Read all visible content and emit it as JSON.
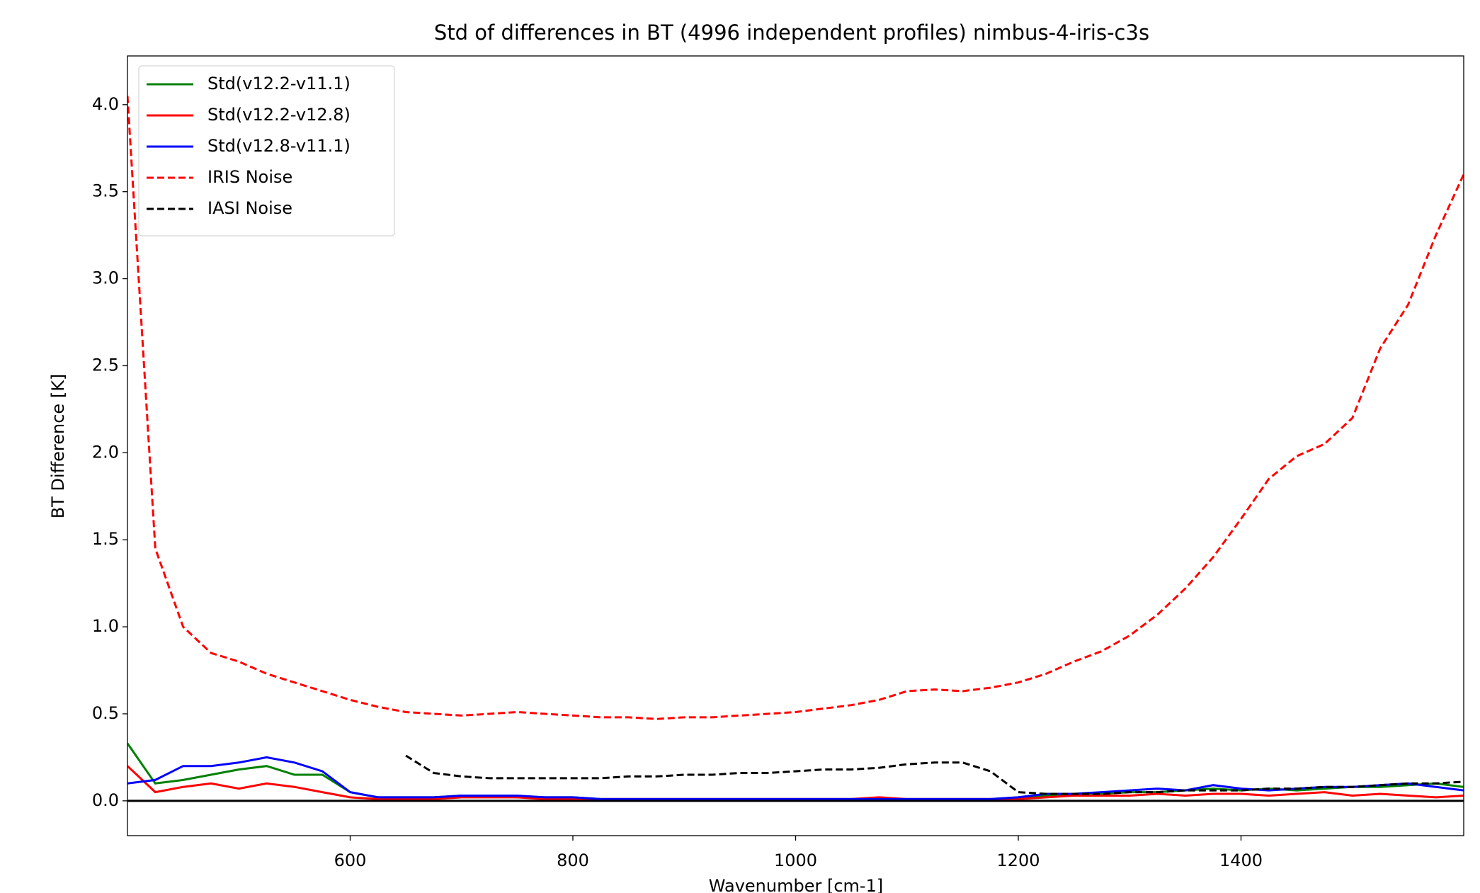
{
  "chart_data": {
    "type": "line",
    "title": "Std of differences in BT (4996 independent profiles) nimbus-4-iris-c3s",
    "xlabel": "Wavenumber [cm-1]",
    "ylabel": "BT Difference [K]",
    "x": [
      400,
      425,
      450,
      475,
      500,
      525,
      550,
      575,
      600,
      625,
      650,
      675,
      700,
      725,
      750,
      775,
      800,
      825,
      850,
      875,
      900,
      925,
      950,
      975,
      1000,
      1025,
      1050,
      1075,
      1100,
      1125,
      1150,
      1175,
      1200,
      1225,
      1250,
      1275,
      1300,
      1325,
      1350,
      1375,
      1400,
      1425,
      1450,
      1475,
      1500,
      1525,
      1550,
      1575,
      1600
    ],
    "series": [
      {
        "name": "Std(v12.2-v11.1)",
        "color": "#008000",
        "linestyle": "solid",
        "values": [
          0.33,
          0.1,
          0.12,
          0.15,
          0.18,
          0.2,
          0.15,
          0.15,
          0.05,
          0.02,
          0.02,
          0.02,
          0.03,
          0.03,
          0.02,
          0.02,
          0.02,
          0.01,
          0.01,
          0.01,
          0.01,
          0.01,
          0.01,
          0.01,
          0.01,
          0.01,
          0.01,
          0.01,
          0.01,
          0.01,
          0.01,
          0.01,
          0.02,
          0.03,
          0.03,
          0.04,
          0.05,
          0.05,
          0.06,
          0.07,
          0.06,
          0.07,
          0.06,
          0.07,
          0.08,
          0.08,
          0.09,
          0.1,
          0.08
        ]
      },
      {
        "name": "Std(v12.2-v12.8)",
        "color": "#ff0000",
        "linestyle": "solid",
        "values": [
          0.2,
          0.05,
          0.08,
          0.1,
          0.07,
          0.1,
          0.08,
          0.05,
          0.02,
          0.01,
          0.01,
          0.01,
          0.02,
          0.02,
          0.02,
          0.01,
          0.01,
          0.01,
          0.01,
          0.01,
          0.01,
          0.01,
          0.01,
          0.01,
          0.01,
          0.01,
          0.01,
          0.02,
          0.01,
          0.01,
          0.01,
          0.01,
          0.01,
          0.02,
          0.03,
          0.03,
          0.03,
          0.04,
          0.03,
          0.04,
          0.04,
          0.03,
          0.04,
          0.05,
          0.03,
          0.04,
          0.03,
          0.02,
          0.03
        ]
      },
      {
        "name": "Std(v12.8-v11.1)",
        "color": "#0000ff",
        "linestyle": "solid",
        "values": [
          0.1,
          0.12,
          0.2,
          0.2,
          0.22,
          0.25,
          0.22,
          0.17,
          0.05,
          0.02,
          0.02,
          0.02,
          0.03,
          0.03,
          0.03,
          0.02,
          0.02,
          0.01,
          0.01,
          0.01,
          0.01,
          0.01,
          0.01,
          0.01,
          0.01,
          0.01,
          0.01,
          0.01,
          0.01,
          0.01,
          0.01,
          0.01,
          0.02,
          0.04,
          0.04,
          0.05,
          0.06,
          0.07,
          0.06,
          0.09,
          0.07,
          0.06,
          0.07,
          0.08,
          0.08,
          0.09,
          0.1,
          0.08,
          0.06
        ]
      },
      {
        "name": "IRIS Noise",
        "color": "#ff0000",
        "linestyle": "dashed",
        "values": [
          4.05,
          1.45,
          1.0,
          0.85,
          0.8,
          0.73,
          0.68,
          0.63,
          0.58,
          0.54,
          0.51,
          0.5,
          0.49,
          0.5,
          0.51,
          0.5,
          0.49,
          0.48,
          0.48,
          0.47,
          0.48,
          0.48,
          0.49,
          0.5,
          0.51,
          0.53,
          0.55,
          0.58,
          0.63,
          0.64,
          0.63,
          0.65,
          0.68,
          0.73,
          0.8,
          0.86,
          0.95,
          1.07,
          1.22,
          1.4,
          1.62,
          1.85,
          1.98,
          2.05,
          2.2,
          2.6,
          2.85,
          3.25,
          3.6
        ]
      },
      {
        "name": "IASI Noise",
        "color": "#000000",
        "linestyle": "dashed",
        "values": [
          null,
          null,
          null,
          null,
          null,
          null,
          null,
          null,
          null,
          null,
          0.26,
          0.16,
          0.14,
          0.13,
          0.13,
          0.13,
          0.13,
          0.13,
          0.14,
          0.14,
          0.15,
          0.15,
          0.16,
          0.16,
          0.17,
          0.18,
          0.18,
          0.19,
          0.21,
          0.22,
          0.22,
          0.17,
          0.05,
          0.04,
          0.04,
          0.04,
          0.05,
          0.05,
          0.06,
          0.06,
          0.06,
          0.07,
          0.07,
          0.08,
          0.08,
          0.09,
          0.1,
          0.1,
          0.11
        ]
      }
    ],
    "hlines": [
      0
    ],
    "xlim": [
      400,
      1600
    ],
    "ylim": [
      -0.2,
      4.28
    ],
    "xticks": [
      600,
      800,
      1000,
      1200,
      1400
    ],
    "yticks": [
      {
        "value": 0,
        "label": "0.0"
      },
      0.5,
      {
        "value": 1,
        "label": "1.0"
      },
      1.5,
      {
        "value": 2,
        "label": "2.0"
      },
      2.5,
      {
        "value": 3,
        "label": "3.0"
      },
      3.5,
      {
        "value": 4,
        "label": "4.0"
      }
    ],
    "legend": "upper left",
    "grid": false
  }
}
